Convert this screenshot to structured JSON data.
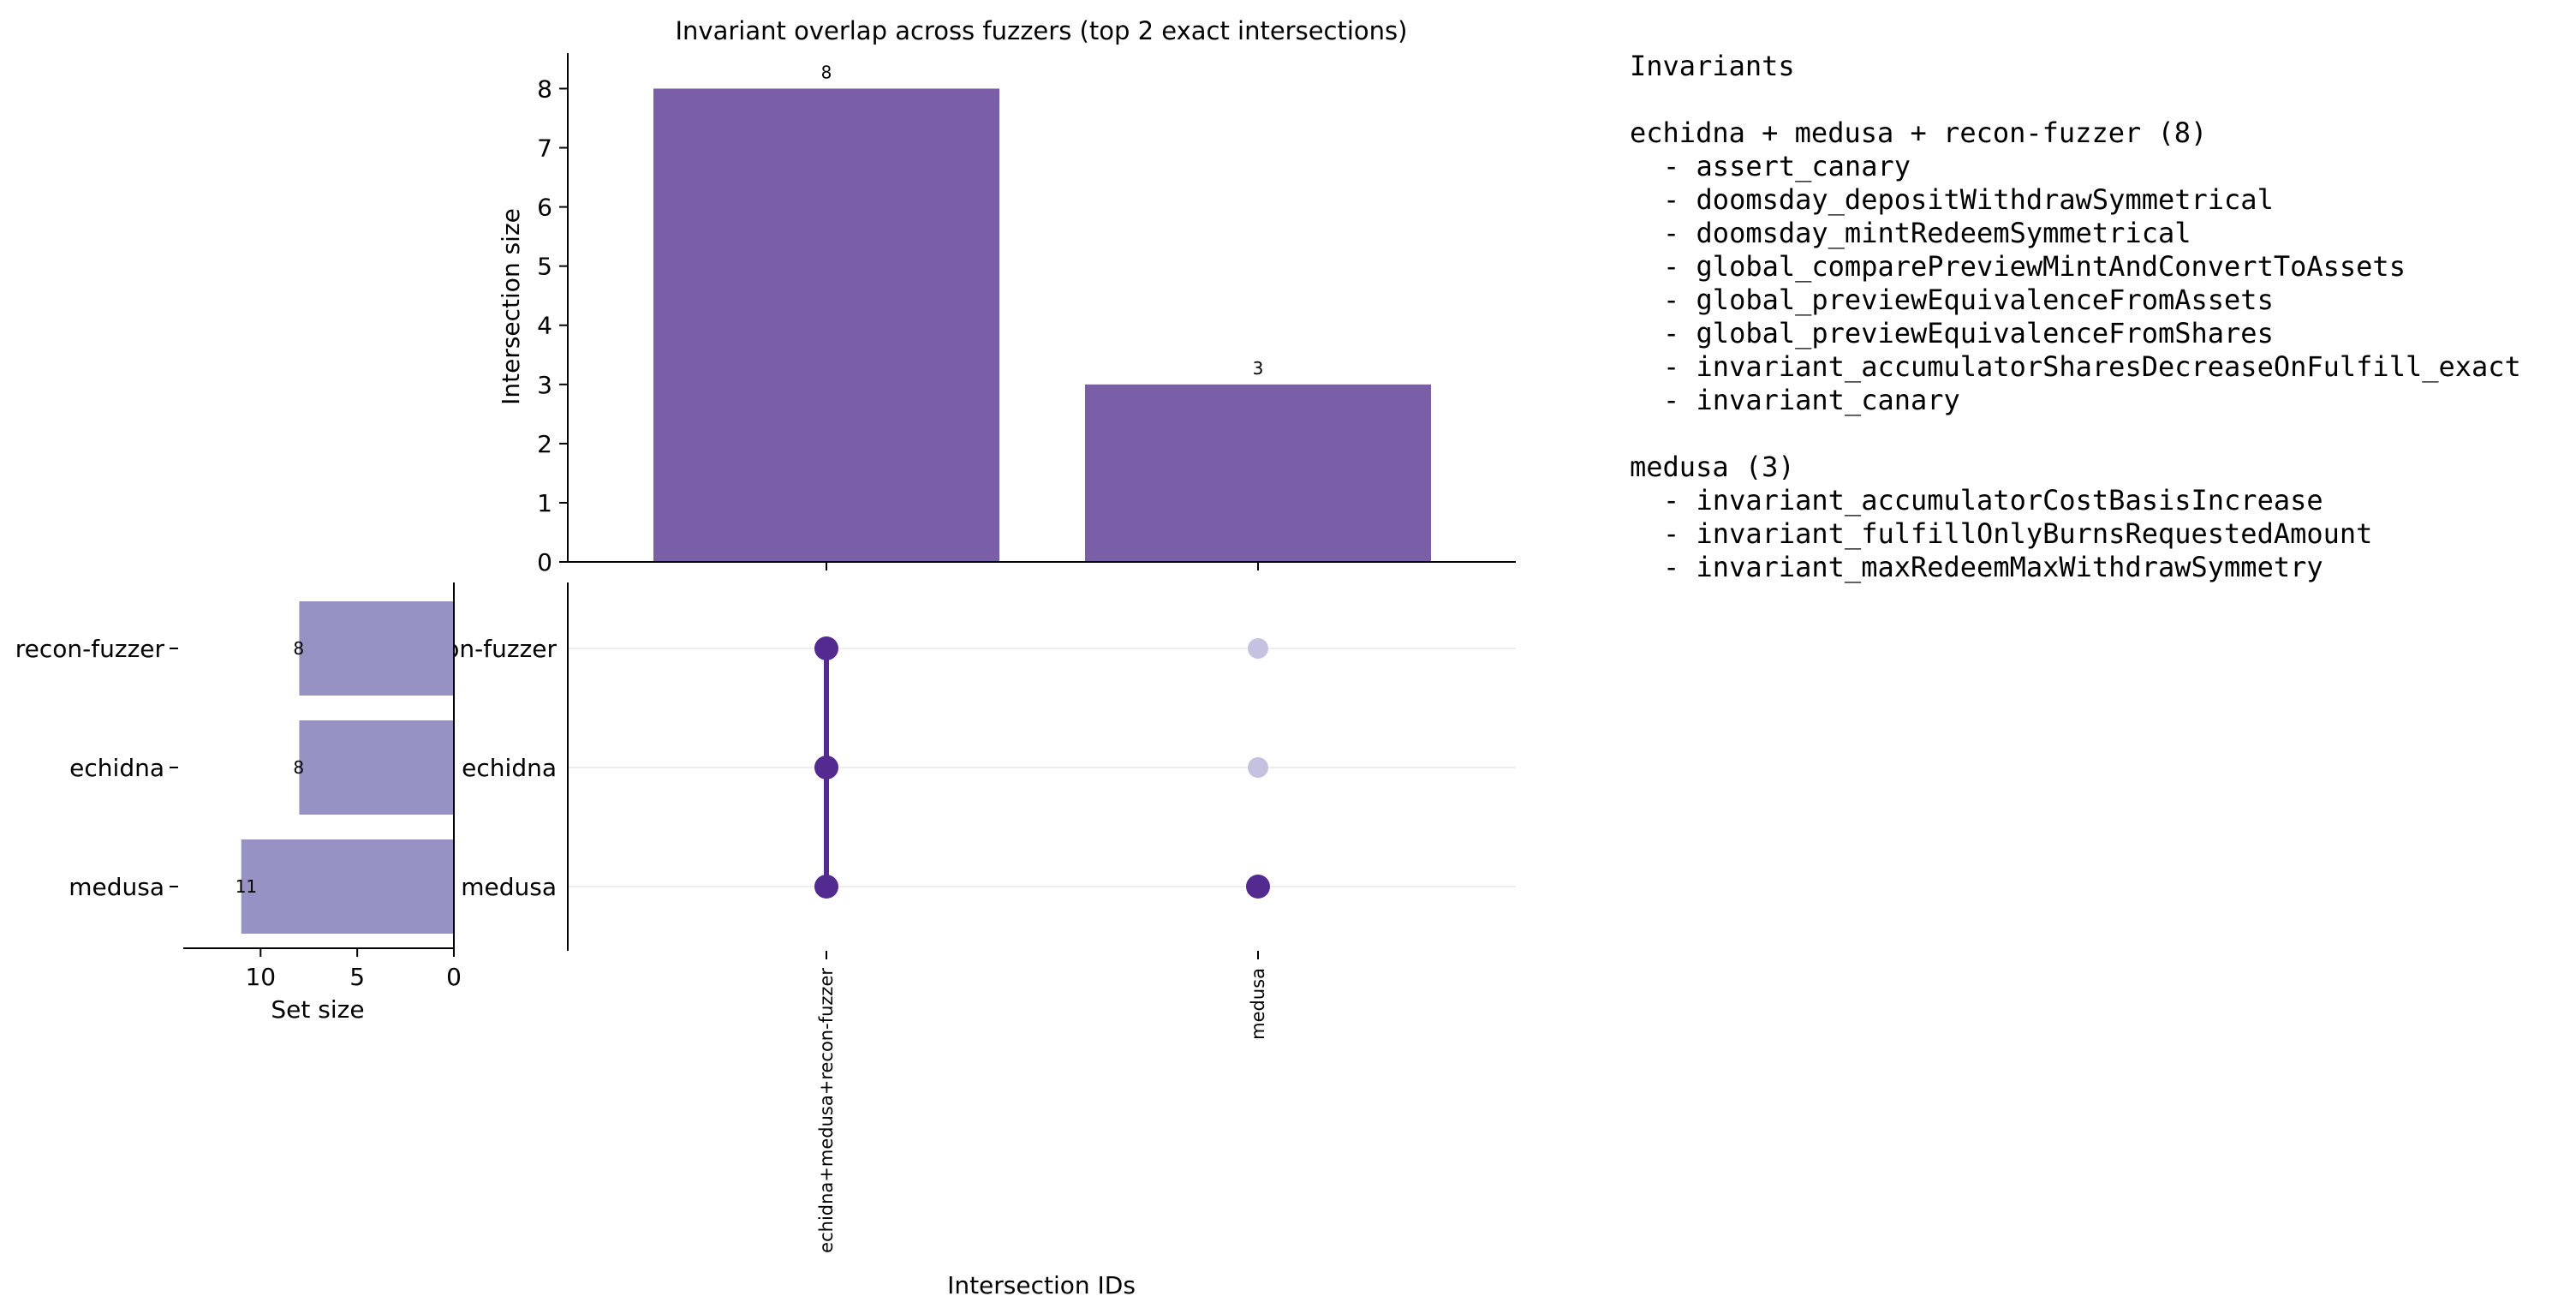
{
  "chart_data": {
    "type": "bar",
    "title": "Invariant overlap across fuzzers (top 2 exact intersections)",
    "intersections": {
      "categories": [
        "echidna+medusa+recon-fuzzer",
        "medusa"
      ],
      "values": [
        8,
        3
      ],
      "ylabel": "Intersection size",
      "xlabel": "Intersection IDs",
      "ylim": [
        0,
        8.6
      ],
      "yticks": [
        0,
        1,
        2,
        3,
        4,
        5,
        6,
        7,
        8
      ],
      "color": "#7b5ea8"
    },
    "set_sizes": {
      "sets": [
        "recon-fuzzer",
        "echidna",
        "medusa"
      ],
      "values": [
        8,
        8,
        11
      ],
      "xlabel": "Set size",
      "xticks": [
        10,
        5,
        0
      ],
      "color": "#9692c4"
    },
    "matrix": {
      "membership": [
        [
          true,
          true,
          true
        ],
        [
          false,
          false,
          true
        ]
      ],
      "active_color": "#532a8f",
      "inactive_color": "#c4c2e0"
    },
    "grid": false,
    "legend": "none"
  },
  "invariants_panel": {
    "title": "Invariants",
    "groups": [
      {
        "header": "echidna + medusa + recon-fuzzer (8)",
        "items": [
          "assert_canary",
          "doomsday_depositWithdrawSymmetrical",
          "doomsday_mintRedeemSymmetrical",
          "global_comparePreviewMintAndConvertToAssets",
          "global_previewEquivalenceFromAssets",
          "global_previewEquivalenceFromShares",
          "invariant_accumulatorSharesDecreaseOnFulfill_exact",
          "invariant_canary"
        ]
      },
      {
        "header": "medusa (3)",
        "items": [
          "invariant_accumulatorCostBasisIncrease",
          "invariant_fulfillOnlyBurnsRequestedAmount",
          "invariant_maxRedeemMaxWithdrawSymmetry"
        ]
      }
    ]
  }
}
